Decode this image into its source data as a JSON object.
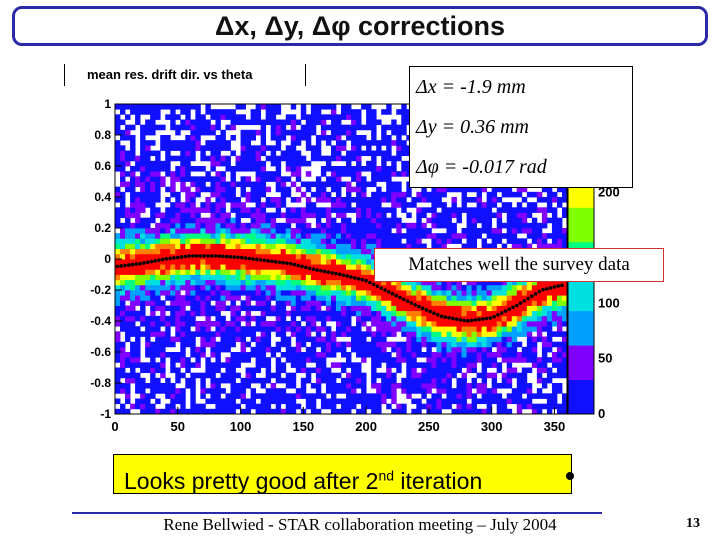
{
  "slide": {
    "title": "Δx, Δy, Δφ corrections",
    "footer": "Rene Bellwied - STAR collaboration meeting – July 2004",
    "page_number": "13"
  },
  "histogram": {
    "header": "mean res. drift dir. vs theta"
  },
  "corrections": {
    "dx": "Δx = -1.9 mm",
    "dy": "Δy = 0.36 mm",
    "dphi": "Δφ = -0.017 rad"
  },
  "annotations": {
    "matches": "Matches well the survey data",
    "looks_pre": "Looks pretty good after 2",
    "looks_sup": "nd",
    "looks_post": " iteration"
  },
  "chart_data": {
    "type": "heatmap",
    "title": "mean res. drift dir. vs theta",
    "xlim": [
      0,
      360
    ],
    "ylim": [
      -1,
      1
    ],
    "x_ticks": [
      0,
      50,
      100,
      150,
      200,
      250,
      300,
      350
    ],
    "y_ticks": [
      -1,
      -0.8,
      -0.6,
      -0.4,
      -0.2,
      0,
      0.2,
      0.4,
      0.6,
      0.8,
      1
    ],
    "y_tick_labels": [
      "-1",
      "-0.8",
      "-0.6",
      "-0.4",
      "-0.2",
      "0",
      "0.2",
      "0.4",
      "0.6",
      "0.8",
      "1"
    ],
    "colorbar_ticks": [
      0,
      50,
      100,
      200
    ],
    "colorbar_range": [
      0,
      280
    ],
    "palette": [
      "#ffffff",
      "#1010ff",
      "#8000ff",
      "#00a0ff",
      "#00e0e0",
      "#00ff80",
      "#80ff00",
      "#ffff00",
      "#ff8000",
      "#ff0000"
    ],
    "mean_profile": {
      "x": [
        0,
        20,
        40,
        60,
        80,
        100,
        120,
        140,
        160,
        180,
        200,
        220,
        240,
        260,
        280,
        300,
        320,
        340,
        355
      ],
      "y": [
        -0.05,
        -0.03,
        0.0,
        0.02,
        0.02,
        0.01,
        -0.01,
        -0.03,
        -0.07,
        -0.1,
        -0.14,
        -0.22,
        -0.3,
        -0.37,
        -0.4,
        -0.38,
        -0.3,
        -0.2,
        -0.17
      ]
    }
  }
}
